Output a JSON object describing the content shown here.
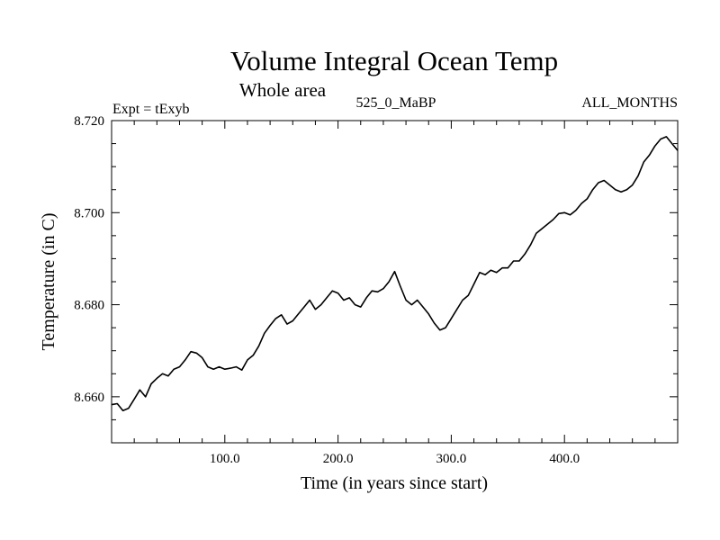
{
  "chart_data": {
    "type": "line",
    "title": "Volume Integral Ocean Temp",
    "subtitle": "Whole area",
    "header_left": "Expt = tExyb",
    "header_center": "525_0_MaBP",
    "header_right": "ALL_MONTHS",
    "xlabel": "Time (in years since start)",
    "ylabel": "Temperature (in C)",
    "xlim": [
      0,
      500
    ],
    "ylim": [
      8.65,
      8.72
    ],
    "xticks": [
      100,
      200,
      300,
      400
    ],
    "xtick_labels": [
      "100.0",
      "200.0",
      "300.0",
      "400.0"
    ],
    "yticks": [
      8.66,
      8.68,
      8.7,
      8.72
    ],
    "ytick_labels": [
      "8.660",
      "8.680",
      "8.700",
      "8.720"
    ],
    "grid": false,
    "line_color": "#000000",
    "series": [
      {
        "x": [
          0,
          5,
          10,
          15,
          20,
          25,
          30,
          35,
          40,
          45,
          50,
          55,
          60,
          65,
          70,
          75,
          80,
          85,
          90,
          95,
          100,
          105,
          110,
          115,
          120,
          125,
          130,
          135,
          140,
          145,
          150,
          155,
          160,
          165,
          170,
          175,
          180,
          185,
          190,
          195,
          200,
          205,
          210,
          215,
          220,
          225,
          230,
          235,
          240,
          245,
          250,
          255,
          260,
          265,
          270,
          275,
          280,
          285,
          290,
          295,
          300,
          305,
          310,
          315,
          320,
          325,
          330,
          335,
          340,
          345,
          350,
          355,
          360,
          365,
          370,
          375,
          380,
          385,
          390,
          395,
          400,
          405,
          410,
          415,
          420,
          425,
          430,
          435,
          440,
          445,
          450,
          455,
          460,
          465,
          470,
          475,
          480,
          485,
          490,
          495,
          500
        ],
        "values": [
          8.6583,
          8.6585,
          8.657,
          8.6575,
          8.6595,
          8.6615,
          8.66,
          8.6628,
          8.664,
          8.665,
          8.6645,
          8.666,
          8.6665,
          8.668,
          8.6698,
          8.6695,
          8.6685,
          8.6665,
          8.666,
          8.6665,
          8.666,
          8.6662,
          8.6665,
          8.6658,
          8.668,
          8.669,
          8.671,
          8.6738,
          8.6755,
          8.677,
          8.6778,
          8.6758,
          8.6765,
          8.678,
          8.6795,
          8.681,
          8.679,
          8.68,
          8.6815,
          8.683,
          8.6825,
          8.681,
          8.6815,
          8.68,
          8.6795,
          8.6815,
          8.683,
          8.6828,
          8.6835,
          8.685,
          8.6872,
          8.684,
          8.681,
          8.68,
          8.681,
          8.6795,
          8.678,
          8.676,
          8.6745,
          8.675,
          8.677,
          8.679,
          8.681,
          8.682,
          8.6845,
          8.687,
          8.6865,
          8.6875,
          8.687,
          8.688,
          8.688,
          8.6895,
          8.6895,
          8.691,
          8.693,
          8.6955,
          8.6965,
          8.6975,
          8.6985,
          8.6998,
          8.7,
          8.6995,
          8.7005,
          8.702,
          8.703,
          8.705,
          8.7065,
          8.707,
          8.706,
          8.705,
          8.7045,
          8.705,
          8.706,
          8.708,
          8.711,
          8.7125,
          8.7145,
          8.716,
          8.7165,
          8.715,
          8.7135
        ]
      }
    ]
  }
}
